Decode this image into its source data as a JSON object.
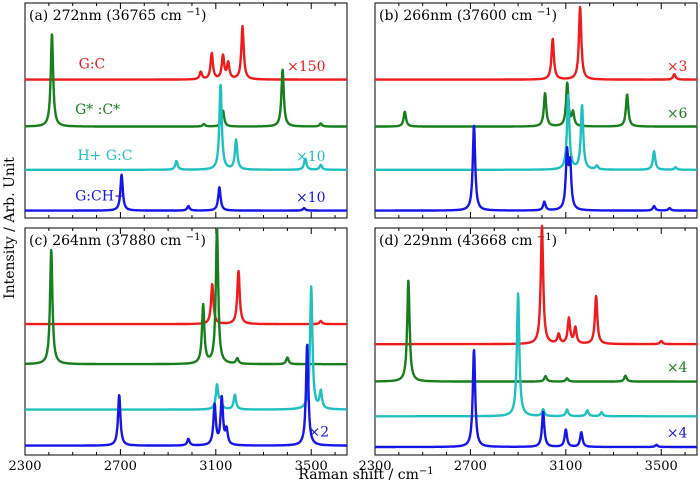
{
  "figure": {
    "ylabel": "Intensity / Arb. Unit",
    "xlabel": "Raman shift / cm",
    "xlabel_sup": "−1",
    "x_ticks": [
      2300,
      2700,
      3100,
      3500
    ],
    "x_tick_labels": [
      "2300",
      "2700",
      "3100",
      "3500"
    ],
    "colors": {
      "red": "#ee1c1c",
      "green": "#177f1c",
      "cyan": "#20c0c0",
      "blue": "#1616e8"
    }
  },
  "chart_data": [
    {
      "type": "line",
      "panel": "a",
      "tag": "(a)",
      "wavelength": "272nm",
      "wavenumber": "(36765 cm",
      "wavenumber_sup": "−1",
      "wavenumber_close": ")",
      "xlim": [
        2300,
        3650
      ],
      "ylim": [
        0,
        8.7
      ],
      "series": [
        {
          "name": "G:C",
          "color": "#ee1c1c",
          "baseline": 5.6,
          "label_x": 2525,
          "label_y": 6.05,
          "scale": "×150",
          "scale_x": 3560,
          "peaks": [
            [
              3037,
              0.3
            ],
            [
              3083,
              1.05
            ],
            [
              3130,
              0.95
            ],
            [
              3152,
              0.65
            ],
            [
              3212,
              2.15
            ]
          ]
        },
        {
          "name": "G* :C*",
          "color": "#177f1c",
          "baseline": 3.7,
          "label_x": 2510,
          "label_y": 4.2,
          "scale": "",
          "scale_x": 3560,
          "peaks": [
            [
              2413,
              3.75
            ],
            [
              3050,
              0.1
            ],
            [
              3130,
              0.65
            ],
            [
              3380,
              2.3
            ],
            [
              3540,
              0.12
            ]
          ]
        },
        {
          "name": "H+ G:C",
          "color": "#20c0c0",
          "baseline": 1.95,
          "label_x": 2520,
          "label_y": 2.35,
          "scale": "×10",
          "scale_x": 3560,
          "peaks": [
            [
              2935,
              0.35
            ],
            [
              3120,
              3.45
            ],
            [
              3185,
              1.2
            ],
            [
              3475,
              0.45
            ],
            [
              3540,
              0.2
            ]
          ]
        },
        {
          "name": "G:CH+",
          "color": "#1616e8",
          "baseline": 0.3,
          "label_x": 2510,
          "label_y": 0.7,
          "scale": "×10",
          "scale_x": 3560,
          "peaks": [
            [
              2705,
              1.45
            ],
            [
              2985,
              0.18
            ],
            [
              3115,
              0.95
            ],
            [
              3470,
              0.1
            ]
          ]
        }
      ]
    },
    {
      "type": "line",
      "panel": "b",
      "tag": "(b)",
      "wavelength": "266nm",
      "wavenumber": "(37600 cm",
      "wavenumber_sup": "−1",
      "wavenumber_close": ")",
      "xlim": [
        2300,
        3650
      ],
      "ylim": [
        0,
        8.7
      ],
      "series": [
        {
          "name": "",
          "color": "#ee1c1c",
          "baseline": 5.6,
          "label_x": 0,
          "label_y": 0,
          "scale": "×3",
          "scale_x": 3610,
          "peaks": [
            [
              3045,
              1.65
            ],
            [
              3160,
              2.95
            ],
            [
              3555,
              0.22
            ]
          ]
        },
        {
          "name": "",
          "color": "#177f1c",
          "baseline": 3.7,
          "label_x": 0,
          "label_y": 0,
          "scale": "×6",
          "scale_x": 3610,
          "peaks": [
            [
              2425,
              0.6
            ],
            [
              3013,
              1.35
            ],
            [
              3106,
              1.75
            ],
            [
              3130,
              0.55
            ],
            [
              3357,
              1.3
            ]
          ]
        },
        {
          "name": "",
          "color": "#20c0c0",
          "baseline": 1.95,
          "label_x": 0,
          "label_y": 0,
          "scale": "",
          "scale_x": 3610,
          "peaks": [
            [
              3110,
              3.0
            ],
            [
              3168,
              2.6
            ],
            [
              3230,
              0.15
            ],
            [
              3470,
              0.75
            ],
            [
              3560,
              0.1
            ]
          ]
        },
        {
          "name": "",
          "color": "#1616e8",
          "baseline": 0.3,
          "label_x": 0,
          "label_y": 0,
          "scale": "",
          "scale_x": 3610,
          "peaks": [
            [
              2715,
              3.45
            ],
            [
              3010,
              0.35
            ],
            [
              3105,
              2.25
            ],
            [
              3118,
              1.75
            ],
            [
              3470,
              0.18
            ],
            [
              3535,
              0.1
            ]
          ]
        }
      ]
    },
    {
      "type": "line",
      "panel": "c",
      "tag": "(c)",
      "wavelength": "264nm",
      "wavenumber": "(37880 cm",
      "wavenumber_sup": "−1",
      "wavenumber_close": ")",
      "xlim": [
        2300,
        3650
      ],
      "ylim": [
        0,
        8.5
      ],
      "series": [
        {
          "name": "",
          "color": "#ee1c1c",
          "baseline": 4.9,
          "label_x": 0,
          "label_y": 0,
          "scale": "",
          "scale_x": 3590,
          "peaks": [
            [
              3085,
              1.5
            ],
            [
              3195,
              2.0
            ],
            [
              3540,
              0.12
            ]
          ]
        },
        {
          "name": "",
          "color": "#177f1c",
          "baseline": 3.4,
          "label_x": 0,
          "label_y": 0,
          "scale": "",
          "scale_x": 3590,
          "peaks": [
            [
              2410,
              4.3
            ],
            [
              3047,
              2.2
            ],
            [
              3105,
              5.1
            ],
            [
              3190,
              0.2
            ],
            [
              3400,
              0.25
            ]
          ]
        },
        {
          "name": "",
          "color": "#20c0c0",
          "baseline": 1.7,
          "label_x": 0,
          "label_y": 0,
          "scale": "",
          "scale_x": 3590,
          "peaks": [
            [
              3105,
              0.9
            ],
            [
              3120,
              0.35
            ],
            [
              3180,
              0.55
            ],
            [
              3500,
              4.6
            ],
            [
              3540,
              0.65
            ]
          ]
        },
        {
          "name": "",
          "color": "#1616e8",
          "baseline": 0.35,
          "label_x": 0,
          "label_y": 0,
          "scale": "×2",
          "scale_x": 3575,
          "peaks": [
            [
              2695,
              1.9
            ],
            [
              2985,
              0.25
            ],
            [
              3095,
              1.5
            ],
            [
              3125,
              1.75
            ],
            [
              3145,
              0.55
            ],
            [
              3483,
              3.8
            ]
          ]
        }
      ]
    },
    {
      "type": "line",
      "panel": "d",
      "tag": "(d)",
      "wavelength": "229nm",
      "wavenumber": "(43668 cm",
      "wavenumber_sup": "−1",
      "wavenumber_close": ")",
      "xlim": [
        2300,
        3650
      ],
      "ylim": [
        0,
        8.5
      ],
      "series": [
        {
          "name": "",
          "color": "#ee1c1c",
          "baseline": 4.15,
          "label_x": 0,
          "label_y": 0,
          "scale": "",
          "scale_x": 3610,
          "peaks": [
            [
              3000,
              4.45
            ],
            [
              3070,
              0.35
            ],
            [
              3113,
              0.95
            ],
            [
              3140,
              0.6
            ],
            [
              3227,
              1.8
            ],
            [
              3500,
              0.12
            ]
          ]
        },
        {
          "name": "",
          "color": "#177f1c",
          "baseline": 2.75,
          "label_x": 0,
          "label_y": 0,
          "scale": "×4",
          "scale_x": 3610,
          "peaks": [
            [
              2440,
              3.8
            ],
            [
              3015,
              0.2
            ],
            [
              3105,
              0.12
            ],
            [
              3350,
              0.22
            ]
          ]
        },
        {
          "name": "",
          "color": "#20c0c0",
          "baseline": 1.45,
          "label_x": 0,
          "label_y": 0,
          "scale": "",
          "scale_x": 3610,
          "peaks": [
            [
              2900,
              4.6
            ],
            [
              3005,
              0.25
            ],
            [
              3105,
              0.25
            ],
            [
              3190,
              0.22
            ],
            [
              3250,
              0.15
            ]
          ]
        },
        {
          "name": "",
          "color": "#1616e8",
          "baseline": 0.3,
          "label_x": 0,
          "label_y": 0,
          "scale": "×4",
          "scale_x": 3610,
          "peaks": [
            [
              2715,
              3.65
            ],
            [
              3005,
              1.3
            ],
            [
              3100,
              0.65
            ],
            [
              3165,
              0.55
            ],
            [
              3480,
              0.08
            ]
          ]
        }
      ]
    }
  ]
}
